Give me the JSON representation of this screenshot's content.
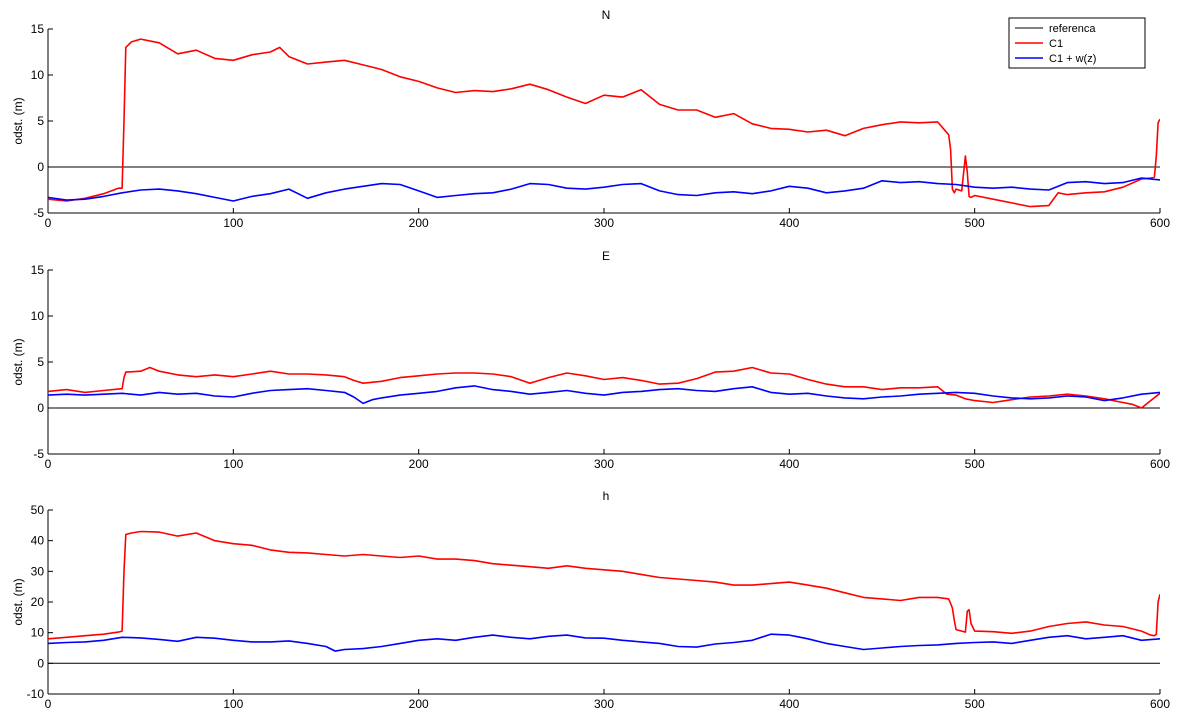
{
  "chart_data": [
    {
      "type": "line",
      "title": "N",
      "xlabel": "",
      "ylabel": "odst. (m)",
      "xlim": [
        0,
        600
      ],
      "ylim": [
        -5,
        15
      ],
      "xticks": [
        0,
        100,
        200,
        300,
        400,
        500,
        600
      ],
      "yticks": [
        -5,
        0,
        5,
        10,
        15
      ],
      "grid": false,
      "legend": "top-right",
      "series": [
        {
          "name": "referenca",
          "color": "#000000",
          "x": [
            0,
            600
          ],
          "y": [
            0,
            0
          ]
        },
        {
          "name": "C1",
          "color": "#ff0000",
          "x": [
            0,
            10,
            20,
            30,
            38,
            40,
            41,
            42,
            45,
            50,
            60,
            70,
            80,
            90,
            100,
            110,
            120,
            125,
            130,
            140,
            150,
            160,
            170,
            180,
            190,
            200,
            210,
            220,
            230,
            240,
            250,
            260,
            270,
            280,
            290,
            300,
            310,
            320,
            330,
            340,
            350,
            360,
            370,
            380,
            390,
            400,
            410,
            420,
            430,
            440,
            450,
            460,
            470,
            480,
            486,
            487,
            488,
            489,
            490,
            493,
            495,
            496,
            497,
            498,
            500,
            510,
            520,
            530,
            540,
            545,
            550,
            560,
            570,
            580,
            590,
            595,
            597,
            598,
            599,
            600
          ],
          "y": [
            -3.5,
            -3.7,
            -3.4,
            -2.9,
            -2.3,
            -2.3,
            5,
            13,
            13.6,
            13.9,
            13.5,
            12.3,
            12.7,
            11.8,
            11.6,
            12.2,
            12.5,
            13,
            12,
            11.2,
            11.4,
            11.6,
            11.1,
            10.6,
            9.8,
            9.3,
            8.6,
            8.1,
            8.3,
            8.2,
            8.5,
            9,
            8.4,
            7.6,
            6.9,
            7.8,
            7.6,
            8.4,
            6.8,
            6.2,
            6.2,
            5.4,
            5.8,
            4.7,
            4.2,
            4.1,
            3.8,
            4,
            3.4,
            4.2,
            4.6,
            4.9,
            4.8,
            4.9,
            3.5,
            1.9,
            -2.4,
            -2.8,
            -2.4,
            -2.6,
            1.2,
            -0.6,
            -3.2,
            -3.3,
            -3.1,
            -3.5,
            -3.9,
            -4.3,
            -4.2,
            -2.8,
            -3,
            -2.8,
            -2.7,
            -2.2,
            -1.3,
            -1.2,
            -1.1,
            1.2,
            4.8,
            5.2
          ]
        },
        {
          "name": "C1 + w(z)",
          "color": "#0000ff",
          "x": [
            0,
            10,
            20,
            30,
            40,
            50,
            60,
            70,
            80,
            90,
            100,
            110,
            120,
            130,
            140,
            150,
            160,
            170,
            180,
            190,
            200,
            210,
            220,
            230,
            240,
            250,
            260,
            270,
            280,
            290,
            300,
            310,
            320,
            330,
            340,
            350,
            360,
            370,
            380,
            390,
            400,
            410,
            420,
            430,
            440,
            450,
            460,
            470,
            480,
            490,
            500,
            510,
            520,
            530,
            540,
            550,
            560,
            570,
            580,
            590,
            600
          ],
          "y": [
            -3.3,
            -3.6,
            -3.5,
            -3.2,
            -2.8,
            -2.5,
            -2.4,
            -2.6,
            -2.9,
            -3.3,
            -3.7,
            -3.2,
            -2.9,
            -2.4,
            -3.4,
            -2.8,
            -2.4,
            -2.1,
            -1.8,
            -1.9,
            -2.6,
            -3.3,
            -3.1,
            -2.9,
            -2.8,
            -2.4,
            -1.8,
            -1.9,
            -2.3,
            -2.4,
            -2.2,
            -1.9,
            -1.8,
            -2.6,
            -3,
            -3.1,
            -2.8,
            -2.7,
            -2.9,
            -2.6,
            -2.1,
            -2.3,
            -2.8,
            -2.6,
            -2.3,
            -1.5,
            -1.7,
            -1.6,
            -1.8,
            -1.9,
            -2.2,
            -2.3,
            -2.2,
            -2.4,
            -2.5,
            -1.7,
            -1.6,
            -1.8,
            -1.7,
            -1.2,
            -1.4
          ]
        }
      ]
    },
    {
      "type": "line",
      "title": "E",
      "xlabel": "",
      "ylabel": "odst. (m)",
      "xlim": [
        0,
        600
      ],
      "ylim": [
        -5,
        15
      ],
      "xticks": [
        0,
        100,
        200,
        300,
        400,
        500,
        600
      ],
      "yticks": [
        -5,
        0,
        5,
        10,
        15
      ],
      "grid": false,
      "legend": "none",
      "series": [
        {
          "name": "referenca",
          "color": "#000000",
          "x": [
            0,
            600
          ],
          "y": [
            0,
            0
          ]
        },
        {
          "name": "C1",
          "color": "#ff0000",
          "x": [
            0,
            10,
            20,
            30,
            40,
            41,
            42,
            50,
            55,
            60,
            70,
            80,
            90,
            100,
            110,
            120,
            130,
            140,
            150,
            160,
            165,
            170,
            180,
            190,
            200,
            210,
            220,
            230,
            240,
            250,
            260,
            270,
            280,
            290,
            300,
            310,
            320,
            330,
            340,
            350,
            360,
            370,
            380,
            390,
            400,
            410,
            420,
            430,
            440,
            450,
            460,
            470,
            480,
            485,
            490,
            495,
            500,
            510,
            520,
            530,
            540,
            550,
            560,
            570,
            580,
            585,
            590,
            595,
            600
          ],
          "y": [
            1.8,
            2,
            1.7,
            1.9,
            2.1,
            3.3,
            3.9,
            4,
            4.4,
            4,
            3.6,
            3.4,
            3.6,
            3.4,
            3.7,
            4,
            3.7,
            3.7,
            3.6,
            3.4,
            3,
            2.7,
            2.9,
            3.3,
            3.5,
            3.7,
            3.8,
            3.8,
            3.7,
            3.4,
            2.7,
            3.3,
            3.8,
            3.5,
            3.1,
            3.3,
            3,
            2.6,
            2.7,
            3.2,
            3.9,
            4,
            4.4,
            3.8,
            3.7,
            3.1,
            2.6,
            2.3,
            2.3,
            2,
            2.2,
            2.2,
            2.3,
            1.5,
            1.4,
            1,
            0.8,
            0.6,
            0.9,
            1.2,
            1.3,
            1.5,
            1.3,
            1,
            0.6,
            0.4,
            0,
            0.8,
            1.6
          ]
        },
        {
          "name": "C1 + w(z)",
          "color": "#0000ff",
          "x": [
            0,
            10,
            20,
            30,
            40,
            50,
            60,
            70,
            80,
            90,
            100,
            110,
            120,
            130,
            140,
            150,
            160,
            165,
            170,
            175,
            180,
            190,
            200,
            210,
            220,
            230,
            240,
            250,
            260,
            270,
            280,
            290,
            300,
            310,
            320,
            330,
            340,
            350,
            360,
            370,
            380,
            390,
            400,
            410,
            420,
            430,
            440,
            450,
            460,
            470,
            480,
            490,
            500,
            510,
            520,
            530,
            540,
            550,
            560,
            570,
            580,
            590,
            600
          ],
          "y": [
            1.4,
            1.5,
            1.4,
            1.5,
            1.6,
            1.4,
            1.7,
            1.5,
            1.6,
            1.3,
            1.2,
            1.6,
            1.9,
            2,
            2.1,
            1.9,
            1.7,
            1.2,
            0.5,
            0.9,
            1.1,
            1.4,
            1.6,
            1.8,
            2.2,
            2.4,
            2,
            1.8,
            1.5,
            1.7,
            1.9,
            1.6,
            1.4,
            1.7,
            1.8,
            2,
            2.1,
            1.9,
            1.8,
            2.1,
            2.3,
            1.7,
            1.5,
            1.6,
            1.3,
            1.1,
            1,
            1.2,
            1.3,
            1.5,
            1.6,
            1.7,
            1.6,
            1.3,
            1.1,
            1,
            1.1,
            1.3,
            1.2,
            0.8,
            1.1,
            1.5,
            1.7
          ]
        }
      ]
    },
    {
      "type": "line",
      "title": "h",
      "xlabel": "",
      "ylabel": "odst. (m)",
      "xlim": [
        0,
        600
      ],
      "ylim": [
        -10,
        50
      ],
      "xticks": [
        0,
        100,
        200,
        300,
        400,
        500,
        600
      ],
      "yticks": [
        -10,
        0,
        10,
        20,
        30,
        40,
        50
      ],
      "grid": false,
      "legend": "none",
      "series": [
        {
          "name": "referenca",
          "color": "#000000",
          "x": [
            0,
            600
          ],
          "y": [
            0,
            0
          ]
        },
        {
          "name": "C1",
          "color": "#ff0000",
          "x": [
            0,
            10,
            20,
            30,
            38,
            40,
            41,
            42,
            45,
            50,
            60,
            70,
            80,
            90,
            100,
            110,
            120,
            130,
            140,
            150,
            160,
            170,
            180,
            190,
            200,
            210,
            220,
            230,
            240,
            250,
            260,
            270,
            280,
            290,
            300,
            310,
            320,
            330,
            340,
            350,
            360,
            370,
            380,
            390,
            400,
            410,
            420,
            430,
            440,
            450,
            460,
            470,
            480,
            486,
            487,
            488,
            489,
            490,
            493,
            495,
            496,
            497,
            498,
            500,
            510,
            520,
            530,
            540,
            550,
            560,
            570,
            580,
            590,
            595,
            597,
            598,
            599,
            600
          ],
          "y": [
            8,
            8.5,
            9,
            9.5,
            10.2,
            10.5,
            30,
            42,
            42.5,
            43,
            42.8,
            41.5,
            42.5,
            40,
            39,
            38.5,
            37,
            36.2,
            36,
            35.5,
            35,
            35.5,
            35,
            34.5,
            35,
            34,
            34,
            33.5,
            32.5,
            32,
            31.5,
            31,
            31.8,
            31,
            30.5,
            30,
            29,
            28,
            27.5,
            27,
            26.5,
            25.5,
            25.5,
            26,
            26.5,
            25.5,
            24.5,
            23,
            21.5,
            21,
            20.5,
            21.5,
            21.5,
            21,
            19.5,
            18,
            14,
            11,
            10.5,
            10.2,
            17,
            17.5,
            13,
            10.5,
            10.3,
            9.8,
            10.5,
            12,
            13,
            13.5,
            12.5,
            12,
            10.5,
            9.2,
            9,
            9.5,
            20,
            22.5
          ]
        },
        {
          "name": "C1 + w(z)",
          "color": "#0000ff",
          "x": [
            0,
            10,
            20,
            30,
            40,
            50,
            60,
            70,
            80,
            90,
            100,
            110,
            120,
            130,
            140,
            150,
            155,
            160,
            170,
            180,
            190,
            200,
            210,
            220,
            230,
            240,
            250,
            260,
            270,
            280,
            290,
            300,
            310,
            320,
            330,
            340,
            350,
            360,
            370,
            380,
            390,
            400,
            410,
            420,
            430,
            440,
            450,
            460,
            470,
            480,
            490,
            500,
            510,
            520,
            530,
            540,
            550,
            560,
            570,
            580,
            590,
            600
          ],
          "y": [
            6.5,
            6.8,
            7,
            7.5,
            8.5,
            8.3,
            7.8,
            7.2,
            8.5,
            8.2,
            7.5,
            7,
            7,
            7.3,
            6.5,
            5.5,
            4,
            4.5,
            4.8,
            5.5,
            6.5,
            7.5,
            8,
            7.5,
            8.5,
            9.2,
            8.5,
            8,
            8.8,
            9.2,
            8.3,
            8.2,
            7.5,
            7,
            6.5,
            5.5,
            5.3,
            6.3,
            6.8,
            7.5,
            9.5,
            9.2,
            8,
            6.5,
            5.5,
            4.5,
            5,
            5.5,
            5.8,
            6,
            6.5,
            6.8,
            7,
            6.5,
            7.5,
            8.5,
            9,
            8,
            8.5,
            9,
            7.5,
            8
          ]
        }
      ]
    }
  ]
}
